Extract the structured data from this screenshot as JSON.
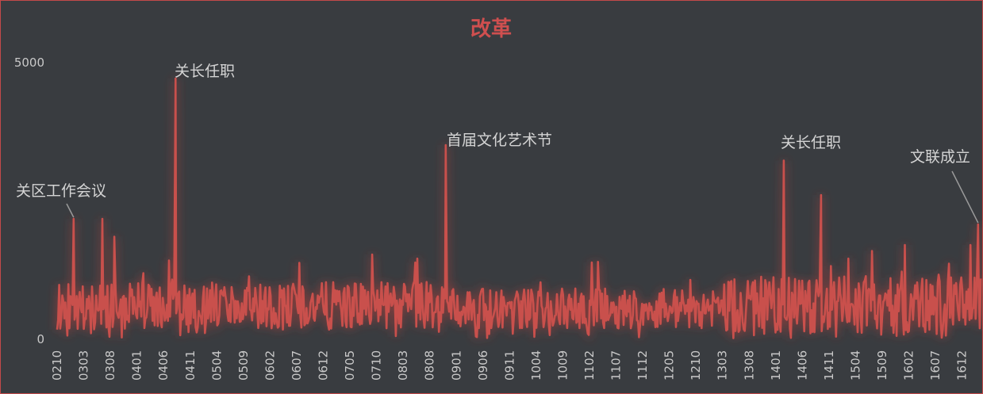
{
  "chart_data": {
    "type": "line",
    "title": "改革",
    "xlabel": "",
    "ylabel": "",
    "ylim": [
      0,
      5000
    ],
    "ytick_labels": [
      "0",
      "5000"
    ],
    "color": "#c9504c",
    "x_tick_labels": [
      "0210",
      "0303",
      "0308",
      "0401",
      "0406",
      "0411",
      "0504",
      "0509",
      "0602",
      "0607",
      "0612",
      "0705",
      "0710",
      "0803",
      "0808",
      "0901",
      "0906",
      "0911",
      "1004",
      "1009",
      "1102",
      "1107",
      "1112",
      "1205",
      "1210",
      "1303",
      "1308",
      "1401",
      "1406",
      "1411",
      "1504",
      "1509",
      "1602",
      "1607",
      "1612"
    ],
    "x_start": 0,
    "x_end": 34.7,
    "peaks": [
      {
        "x": 0.62,
        "y": 2170
      },
      {
        "x": 1.7,
        "y": 2170
      },
      {
        "x": 2.15,
        "y": 1850
      },
      {
        "x": 4.45,
        "y": 4700
      },
      {
        "x": 14.6,
        "y": 3500
      },
      {
        "x": 27.3,
        "y": 3220
      },
      {
        "x": 28.7,
        "y": 2600
      },
      {
        "x": 34.6,
        "y": 2070
      }
    ],
    "annotations": [
      {
        "text": "关区工作会议",
        "x": 0.62,
        "y": 2170
      },
      {
        "text": "关长任职",
        "x": 4.45,
        "y": 4700
      },
      {
        "text": "首届文化艺术节",
        "x": 14.6,
        "y": 3500
      },
      {
        "text": "关长任职",
        "x": 27.3,
        "y": 3220
      },
      {
        "text": "文联成立",
        "x": 34.6,
        "y": 2070
      }
    ]
  }
}
